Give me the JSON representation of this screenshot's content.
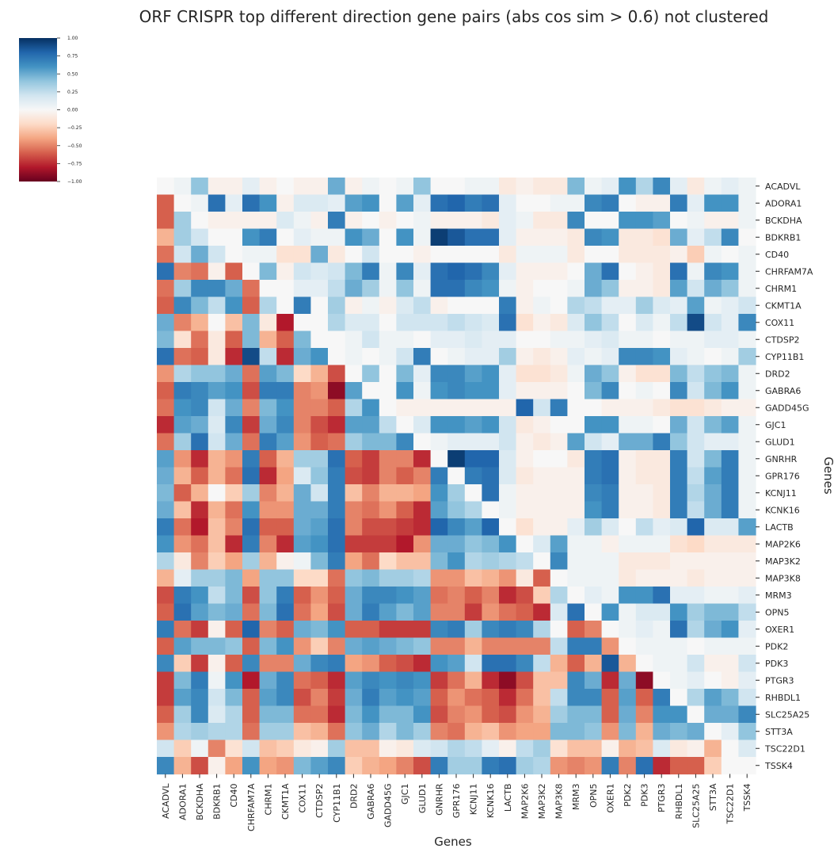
{
  "chart_data": {
    "type": "heatmap",
    "title": "ORF CRISPR top different direction gene pairs (abs cos sim > 0.6) not clustered",
    "xlabel": "Genes",
    "ylabel": "Genes",
    "colormap": "RdBu",
    "vmin": -1.0,
    "vmax": 1.0,
    "colorbar_ticks": [
      1.0,
      0.75,
      0.5,
      0.25,
      0.0,
      -0.25,
      -0.5,
      -0.75,
      -1.0
    ],
    "colorbar_tick_labels": [
      "1.00",
      "0.75",
      "0.50",
      "0.25",
      "0.00",
      "−0.25",
      "−0.50",
      "−0.75",
      "−1.00"
    ],
    "legend_position": "top-left",
    "grid": false,
    "genes": [
      "ACADVL",
      "ADORA1",
      "BCKDHA",
      "BDKRB1",
      "CD40",
      "CHRFAM7A",
      "CHRM1",
      "CKMT1A",
      "COX11",
      "CTDSP2",
      "CYP11B1",
      "DRD2",
      "GABRA6",
      "GADD45G",
      "GJC1",
      "GLUD1",
      "GNRHR",
      "GPR176",
      "KCNJ11",
      "KCNK16",
      "LACTB",
      "MAP2K6",
      "MAP3K2",
      "MAP3K8",
      "MRM3",
      "OPN5",
      "OXER1",
      "PDK2",
      "PDK3",
      "PTGR3",
      "RHBDL1",
      "SLC25A25",
      "STT3A",
      "TSC22D1",
      "TSSK4"
    ],
    "matrix": [
      [
        0.0,
        0.05,
        0.4,
        -0.05,
        -0.05,
        0.1,
        -0.05,
        0.0,
        -0.05,
        -0.05,
        0.5,
        -0.05,
        0.05,
        0.0,
        0.05,
        0.4,
        0.0,
        0.0,
        0.05,
        0.05,
        -0.1,
        -0.05,
        -0.1,
        -0.1,
        0.45,
        0.05,
        0.1,
        0.6,
        0.3,
        0.65,
        0.1,
        -0.1,
        0.05,
        0.1,
        0.05
      ],
      [
        -0.6,
        0.0,
        0.05,
        0.75,
        0.1,
        0.75,
        0.6,
        -0.05,
        0.15,
        0.15,
        0.1,
        0.55,
        0.6,
        0.0,
        0.55,
        0.1,
        0.75,
        0.8,
        0.7,
        0.75,
        0.1,
        0.0,
        0.0,
        0.05,
        0.05,
        0.65,
        0.7,
        0.0,
        -0.05,
        -0.05,
        0.7,
        0.1,
        0.6,
        0.6,
        0.05
      ],
      [
        -0.6,
        0.35,
        0.0,
        -0.05,
        -0.05,
        -0.05,
        -0.05,
        0.15,
        0.05,
        -0.05,
        0.7,
        -0.05,
        0.0,
        -0.05,
        0.0,
        0.05,
        -0.05,
        -0.05,
        -0.05,
        -0.1,
        0.1,
        0.05,
        -0.1,
        -0.1,
        0.65,
        0.0,
        0.0,
        0.6,
        0.6,
        0.55,
        0.0,
        0.05,
        -0.05,
        -0.05,
        0.05
      ],
      [
        -0.35,
        0.35,
        0.2,
        0.0,
        0.0,
        0.6,
        0.7,
        0.0,
        0.1,
        0.05,
        0.05,
        0.6,
        0.5,
        0.0,
        0.6,
        0.05,
        0.95,
        0.85,
        0.75,
        0.75,
        0.1,
        -0.05,
        -0.05,
        -0.05,
        -0.1,
        0.65,
        0.6,
        -0.1,
        -0.1,
        -0.15,
        0.5,
        0.1,
        0.25,
        0.65,
        0.0
      ],
      [
        -0.55,
        0.2,
        0.5,
        0.2,
        0.0,
        0.05,
        0.05,
        -0.15,
        -0.15,
        0.5,
        -0.1,
        0.0,
        0.2,
        0.0,
        0.0,
        -0.05,
        0.0,
        0.0,
        0.0,
        0.0,
        -0.1,
        0.05,
        0.05,
        0.05,
        -0.1,
        0.0,
        0.0,
        -0.1,
        -0.1,
        -0.1,
        -0.05,
        -0.25,
        0.05,
        0.0,
        0.05
      ],
      [
        0.75,
        -0.5,
        -0.55,
        -0.05,
        -0.6,
        0.0,
        0.45,
        -0.05,
        0.2,
        0.15,
        0.2,
        0.45,
        0.7,
        0.05,
        0.65,
        0.1,
        0.75,
        0.8,
        0.75,
        0.65,
        0.1,
        -0.05,
        -0.05,
        -0.05,
        0.0,
        0.5,
        0.75,
        0.0,
        -0.05,
        -0.1,
        0.75,
        0.05,
        0.65,
        0.6,
        0.05
      ],
      [
        -0.55,
        0.35,
        0.65,
        0.65,
        0.5,
        -0.55,
        0.0,
        0.0,
        0.1,
        0.1,
        0.25,
        0.5,
        0.35,
        0.05,
        0.4,
        0.05,
        0.75,
        0.75,
        0.65,
        0.6,
        0.05,
        -0.05,
        0.0,
        0.0,
        0.05,
        0.5,
        0.4,
        -0.05,
        -0.05,
        -0.1,
        0.55,
        0.2,
        0.5,
        0.4,
        0.05
      ],
      [
        -0.6,
        0.65,
        0.45,
        0.25,
        0.6,
        -0.6,
        0.3,
        0.0,
        0.7,
        0.0,
        0.35,
        -0.05,
        0.05,
        -0.05,
        0.15,
        0.25,
        -0.05,
        0.0,
        0.0,
        0.0,
        0.7,
        -0.05,
        0.05,
        0.0,
        0.3,
        0.25,
        0.1,
        0.1,
        0.35,
        0.15,
        0.1,
        0.55,
        0.05,
        0.1,
        0.2
      ],
      [
        0.5,
        -0.5,
        -0.35,
        0.0,
        -0.3,
        0.45,
        -0.1,
        -0.8,
        0.0,
        0.0,
        0.3,
        0.15,
        0.15,
        0.0,
        0.2,
        0.2,
        0.2,
        0.25,
        0.2,
        0.15,
        0.75,
        -0.15,
        -0.05,
        -0.1,
        0.15,
        0.4,
        0.25,
        0.0,
        0.15,
        0.05,
        0.25,
        0.9,
        0.2,
        0.1,
        0.65
      ],
      [
        0.45,
        -0.15,
        -0.55,
        -0.1,
        -0.6,
        0.45,
        -0.35,
        -0.6,
        0.45,
        0.0,
        0.0,
        0.05,
        0.2,
        0.05,
        0.05,
        0.0,
        0.1,
        0.1,
        0.15,
        0.1,
        0.1,
        0.0,
        0.0,
        0.05,
        0.05,
        0.1,
        0.15,
        0.05,
        0.05,
        0.0,
        0.05,
        0.05,
        0.1,
        0.1,
        0.05
      ],
      [
        0.75,
        -0.55,
        -0.6,
        -0.1,
        -0.75,
        0.9,
        0.25,
        -0.75,
        0.5,
        0.6,
        0.0,
        0.05,
        0.0,
        0.05,
        0.2,
        0.7,
        0.0,
        0.05,
        0.1,
        0.1,
        0.35,
        -0.05,
        -0.1,
        -0.05,
        0.1,
        0.05,
        0.1,
        0.65,
        0.65,
        0.6,
        0.1,
        0.05,
        0.0,
        0.05,
        0.35
      ],
      [
        -0.45,
        0.3,
        0.4,
        0.4,
        0.5,
        -0.55,
        0.55,
        0.45,
        -0.2,
        -0.35,
        -0.65,
        0.0,
        0.4,
        0.0,
        0.45,
        0.1,
        0.65,
        0.65,
        0.55,
        0.6,
        0.1,
        -0.15,
        -0.15,
        -0.1,
        0.05,
        0.5,
        0.4,
        -0.05,
        -0.15,
        -0.15,
        0.45,
        0.25,
        0.4,
        0.45,
        0.05
      ],
      [
        -0.6,
        0.7,
        0.65,
        0.55,
        0.6,
        -0.65,
        0.7,
        0.7,
        -0.5,
        -0.45,
        -0.9,
        0.55,
        0.0,
        0.0,
        0.6,
        0.05,
        0.6,
        0.65,
        0.6,
        0.6,
        0.1,
        -0.05,
        -0.05,
        -0.05,
        0.0,
        0.45,
        0.65,
        0.0,
        0.05,
        0.0,
        0.65,
        0.2,
        0.45,
        0.6,
        0.05
      ],
      [
        -0.55,
        0.6,
        0.65,
        0.2,
        0.5,
        -0.5,
        0.45,
        0.6,
        -0.5,
        -0.5,
        -0.6,
        0.3,
        0.6,
        0.0,
        -0.05,
        -0.05,
        -0.05,
        -0.05,
        -0.05,
        -0.05,
        -0.05,
        0.8,
        0.2,
        0.7,
        0.0,
        0.0,
        -0.05,
        -0.05,
        -0.05,
        -0.1,
        -0.15,
        -0.15,
        -0.1,
        -0.05,
        -0.05
      ],
      [
        -0.75,
        0.55,
        0.5,
        0.15,
        0.65,
        -0.7,
        0.5,
        0.65,
        -0.5,
        -0.65,
        -0.75,
        0.55,
        0.55,
        0.25,
        0.0,
        0.15,
        0.6,
        0.6,
        0.55,
        0.6,
        0.2,
        -0.1,
        -0.05,
        0.0,
        0.0,
        0.6,
        0.6,
        0.05,
        0.05,
        0.0,
        0.5,
        0.2,
        0.45,
        0.55,
        0.05
      ],
      [
        -0.55,
        0.35,
        0.75,
        0.2,
        0.5,
        -0.55,
        0.7,
        0.55,
        -0.45,
        -0.6,
        -0.55,
        0.35,
        0.45,
        0.45,
        0.65,
        0.0,
        0.05,
        0.1,
        0.1,
        0.1,
        0.2,
        -0.05,
        -0.1,
        -0.05,
        0.55,
        0.2,
        0.1,
        0.5,
        0.5,
        0.7,
        0.4,
        0.2,
        0.1,
        0.1,
        0.05
      ],
      [
        0.55,
        -0.45,
        -0.75,
        -0.35,
        -0.45,
        0.7,
        -0.6,
        -0.35,
        0.35,
        0.35,
        0.75,
        -0.6,
        -0.7,
        -0.5,
        -0.5,
        -0.75,
        0.0,
        0.95,
        0.8,
        0.8,
        0.15,
        -0.05,
        0.0,
        0.0,
        -0.1,
        0.7,
        0.75,
        -0.05,
        -0.1,
        -0.1,
        0.7,
        0.2,
        0.45,
        0.7,
        0.05
      ],
      [
        0.5,
        -0.35,
        -0.6,
        -0.35,
        -0.55,
        0.75,
        -0.75,
        -0.4,
        0.15,
        0.4,
        0.7,
        -0.65,
        -0.7,
        -0.5,
        -0.6,
        -0.5,
        0.7,
        0.0,
        0.7,
        0.75,
        0.15,
        -0.1,
        -0.05,
        -0.05,
        -0.05,
        0.7,
        0.75,
        -0.05,
        -0.1,
        -0.1,
        0.7,
        0.25,
        0.55,
        0.7,
        0.05
      ],
      [
        0.45,
        -0.6,
        -0.35,
        0.0,
        -0.25,
        0.35,
        -0.5,
        -0.35,
        0.5,
        0.2,
        0.7,
        -0.3,
        -0.5,
        -0.35,
        -0.35,
        -0.4,
        0.6,
        0.35,
        0.0,
        0.75,
        0.05,
        -0.05,
        -0.05,
        -0.05,
        -0.05,
        0.65,
        0.7,
        -0.05,
        -0.05,
        -0.1,
        0.7,
        0.3,
        0.5,
        0.7,
        0.05
      ],
      [
        0.5,
        -0.3,
        -0.75,
        -0.35,
        -0.55,
        0.6,
        -0.45,
        -0.45,
        0.5,
        0.5,
        0.7,
        -0.5,
        -0.55,
        -0.45,
        -0.6,
        -0.75,
        0.55,
        0.4,
        0.3,
        0.0,
        0.05,
        -0.05,
        -0.05,
        -0.05,
        -0.05,
        0.6,
        0.7,
        -0.05,
        -0.05,
        -0.1,
        0.7,
        0.25,
        0.5,
        0.7,
        0.05
      ],
      [
        0.7,
        -0.55,
        -0.8,
        -0.3,
        -0.5,
        0.75,
        -0.6,
        -0.6,
        0.5,
        0.55,
        0.75,
        -0.5,
        -0.65,
        -0.65,
        -0.7,
        -0.75,
        0.8,
        0.65,
        0.55,
        0.8,
        0.0,
        -0.15,
        -0.05,
        -0.05,
        0.1,
        0.35,
        0.15,
        0.0,
        0.25,
        0.1,
        0.15,
        0.8,
        0.15,
        0.15,
        0.55
      ],
      [
        0.6,
        -0.45,
        -0.55,
        -0.3,
        -0.75,
        0.7,
        -0.5,
        -0.75,
        0.55,
        0.6,
        0.75,
        -0.7,
        -0.7,
        -0.7,
        -0.8,
        -0.45,
        0.5,
        0.5,
        0.4,
        0.45,
        0.6,
        0.0,
        0.15,
        0.55,
        0.05,
        0.05,
        -0.05,
        0.05,
        0.05,
        0.05,
        -0.15,
        -0.2,
        -0.1,
        -0.1,
        -0.1
      ],
      [
        0.3,
        -0.1,
        -0.5,
        -0.25,
        -0.4,
        0.35,
        -0.35,
        -0.05,
        0.05,
        0.45,
        0.7,
        -0.4,
        -0.55,
        -0.2,
        -0.3,
        -0.3,
        0.45,
        0.6,
        0.3,
        0.35,
        0.3,
        0.25,
        0.0,
        0.65,
        0.05,
        0.05,
        0.05,
        -0.1,
        -0.1,
        -0.1,
        -0.05,
        -0.05,
        -0.05,
        -0.05,
        -0.05
      ],
      [
        -0.35,
        0.1,
        0.35,
        0.35,
        0.45,
        -0.4,
        0.4,
        0.4,
        -0.2,
        -0.2,
        -0.55,
        0.4,
        0.45,
        0.35,
        0.35,
        0.3,
        -0.45,
        -0.45,
        -0.3,
        -0.35,
        -0.45,
        -0.1,
        -0.6,
        0.0,
        0.05,
        0.05,
        0.05,
        -0.1,
        -0.05,
        -0.05,
        -0.05,
        -0.1,
        -0.05,
        -0.05,
        -0.05
      ],
      [
        -0.65,
        0.7,
        0.6,
        0.25,
        0.45,
        -0.65,
        0.4,
        0.7,
        -0.6,
        -0.45,
        -0.6,
        0.5,
        0.65,
        0.65,
        0.6,
        0.55,
        -0.55,
        -0.5,
        -0.6,
        -0.5,
        -0.75,
        -0.65,
        -0.25,
        0.3,
        0.0,
        0.1,
        0.05,
        0.6,
        0.6,
        0.75,
        0.1,
        0.1,
        0.05,
        0.05,
        0.1
      ],
      [
        -0.6,
        0.75,
        0.55,
        0.45,
        0.5,
        -0.55,
        0.45,
        0.75,
        -0.55,
        -0.4,
        -0.65,
        0.5,
        0.7,
        0.55,
        0.45,
        0.55,
        -0.5,
        -0.5,
        -0.7,
        -0.45,
        -0.55,
        -0.6,
        -0.75,
        0.15,
        0.75,
        0.0,
        0.6,
        0.05,
        0.15,
        0.15,
        0.6,
        0.35,
        0.45,
        0.45,
        0.25
      ],
      [
        0.7,
        -0.55,
        -0.7,
        -0.05,
        -0.6,
        0.8,
        -0.5,
        -0.6,
        0.5,
        0.45,
        0.6,
        -0.6,
        -0.6,
        -0.7,
        -0.7,
        -0.7,
        0.65,
        0.7,
        0.35,
        0.65,
        0.7,
        0.65,
        0.3,
        0.0,
        -0.6,
        -0.5,
        0.0,
        0.05,
        0.1,
        0.05,
        0.75,
        0.3,
        0.5,
        0.6,
        0.1
      ],
      [
        -0.6,
        0.55,
        0.45,
        0.45,
        0.4,
        -0.6,
        0.45,
        0.6,
        -0.45,
        -0.25,
        -0.5,
        0.5,
        0.55,
        0.5,
        0.45,
        0.4,
        -0.5,
        -0.5,
        -0.35,
        -0.5,
        -0.5,
        -0.5,
        -0.5,
        0.25,
        0.7,
        0.7,
        -0.45,
        0.0,
        0.05,
        0.05,
        0.05,
        0.0,
        0.05,
        0.05,
        0.05
      ],
      [
        0.65,
        -0.25,
        -0.7,
        -0.05,
        -0.6,
        0.65,
        -0.5,
        -0.5,
        0.5,
        0.65,
        0.7,
        -0.4,
        -0.45,
        -0.6,
        -0.65,
        -0.75,
        0.6,
        0.55,
        0.2,
        0.75,
        0.75,
        0.65,
        0.25,
        -0.35,
        -0.6,
        -0.35,
        0.85,
        -0.35,
        0.0,
        0.05,
        0.05,
        0.2,
        -0.05,
        -0.05,
        0.2
      ],
      [
        -0.7,
        0.45,
        0.7,
        0.05,
        0.6,
        -0.8,
        0.5,
        0.65,
        -0.55,
        -0.6,
        -0.75,
        0.55,
        0.65,
        0.6,
        0.65,
        0.6,
        -0.7,
        -0.55,
        -0.35,
        -0.75,
        -0.9,
        -0.65,
        -0.3,
        -0.3,
        0.65,
        0.5,
        -0.75,
        0.5,
        -0.9,
        0.0,
        0.05,
        0.1,
        0.0,
        -0.05,
        0.1
      ],
      [
        -0.7,
        0.55,
        0.65,
        0.2,
        0.45,
        -0.6,
        0.55,
        0.65,
        -0.65,
        -0.5,
        -0.7,
        0.5,
        0.7,
        0.55,
        0.6,
        0.55,
        -0.6,
        -0.45,
        -0.55,
        -0.6,
        -0.75,
        -0.55,
        -0.3,
        0.25,
        0.65,
        0.65,
        -0.6,
        0.55,
        -0.6,
        0.7,
        0.0,
        0.3,
        0.55,
        0.45,
        0.2
      ],
      [
        -0.6,
        0.35,
        0.65,
        0.15,
        0.3,
        -0.6,
        0.45,
        0.45,
        -0.55,
        -0.55,
        -0.75,
        0.45,
        0.6,
        0.45,
        0.45,
        0.6,
        -0.65,
        -0.5,
        -0.45,
        -0.6,
        -0.65,
        -0.45,
        -0.35,
        0.35,
        0.45,
        0.45,
        -0.6,
        0.5,
        -0.5,
        0.6,
        0.6,
        0.0,
        0.5,
        0.5,
        0.65
      ],
      [
        -0.45,
        0.3,
        0.35,
        0.3,
        0.3,
        -0.55,
        0.35,
        0.35,
        -0.3,
        -0.35,
        -0.55,
        0.4,
        0.5,
        0.3,
        0.45,
        0.35,
        -0.5,
        -0.55,
        -0.35,
        -0.3,
        -0.45,
        -0.4,
        -0.4,
        0.45,
        0.45,
        0.4,
        -0.45,
        0.45,
        -0.35,
        0.5,
        0.45,
        0.5,
        0.0,
        0.1,
        0.4
      ],
      [
        0.2,
        -0.25,
        0.05,
        -0.5,
        -0.15,
        0.2,
        -0.3,
        -0.25,
        -0.1,
        -0.05,
        0.35,
        -0.3,
        -0.3,
        -0.05,
        -0.1,
        0.15,
        0.2,
        0.3,
        0.25,
        0.1,
        -0.05,
        0.25,
        0.35,
        -0.15,
        -0.3,
        -0.3,
        -0.05,
        -0.35,
        -0.3,
        0.15,
        -0.1,
        -0.05,
        -0.35,
        0.0,
        0.15
      ],
      [
        0.65,
        -0.35,
        -0.65,
        -0.05,
        -0.4,
        0.6,
        -0.4,
        -0.45,
        0.45,
        0.55,
        0.65,
        -0.25,
        -0.35,
        -0.4,
        -0.5,
        -0.65,
        0.7,
        0.35,
        0.35,
        0.7,
        0.75,
        0.35,
        0.3,
        -0.45,
        -0.5,
        -0.45,
        0.7,
        -0.5,
        0.75,
        -0.75,
        -0.6,
        -0.6,
        -0.25,
        0.0,
        0.0
      ]
    ]
  }
}
